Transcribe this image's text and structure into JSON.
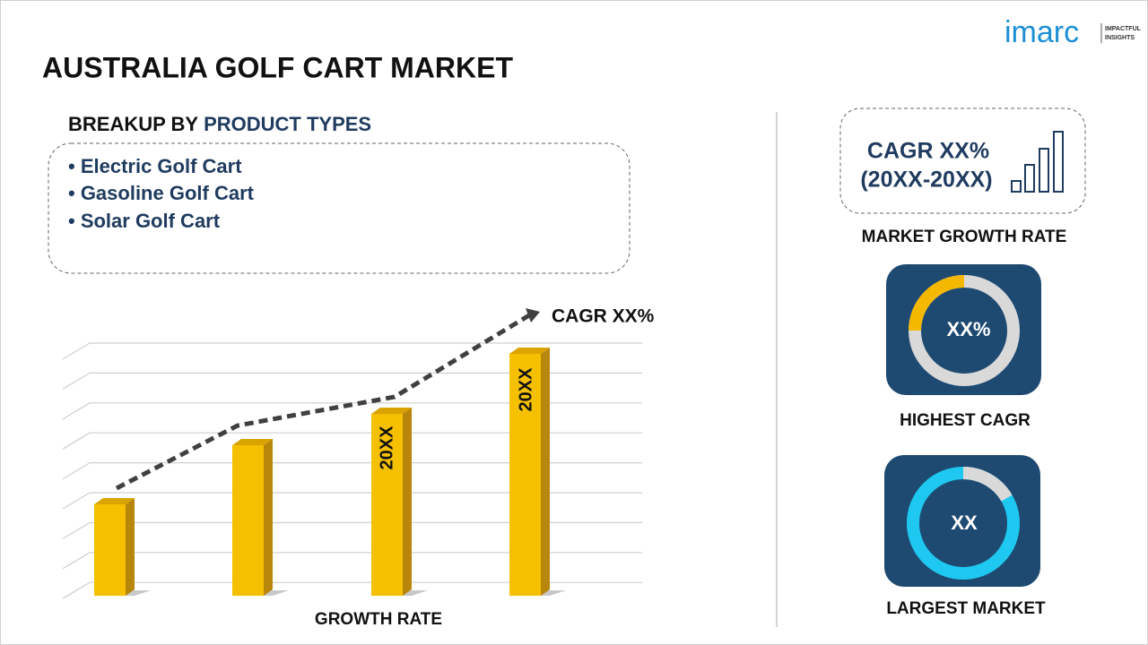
{
  "logo": {
    "name": "imarc",
    "tagline_1": "IMPACTFUL",
    "tagline_2": "INSIGHTS"
  },
  "title": "AUSTRALIA GOLF CART MARKET",
  "breakup": {
    "label": "BREAKUP BY",
    "highlight": "PRODUCT TYPES",
    "items": [
      "• Electric Golf Cart",
      "• Gasoline Golf Cart",
      "• Solar Golf Cart"
    ]
  },
  "growth_chart": {
    "cagr_label": "CAGR XX%",
    "bar_labels": [
      "20XX",
      "20XX"
    ],
    "axis_label": "GROWTH RATE"
  },
  "market_growth": {
    "line_1": "CAGR XX%",
    "line_2": "(20XX-20XX)",
    "caption": "MARKET GROWTH RATE"
  },
  "highest_cagr": {
    "value": "XX%",
    "caption": "HIGHEST CAGR"
  },
  "largest_market": {
    "value": "XX",
    "caption": "LARGEST MARKET"
  }
}
